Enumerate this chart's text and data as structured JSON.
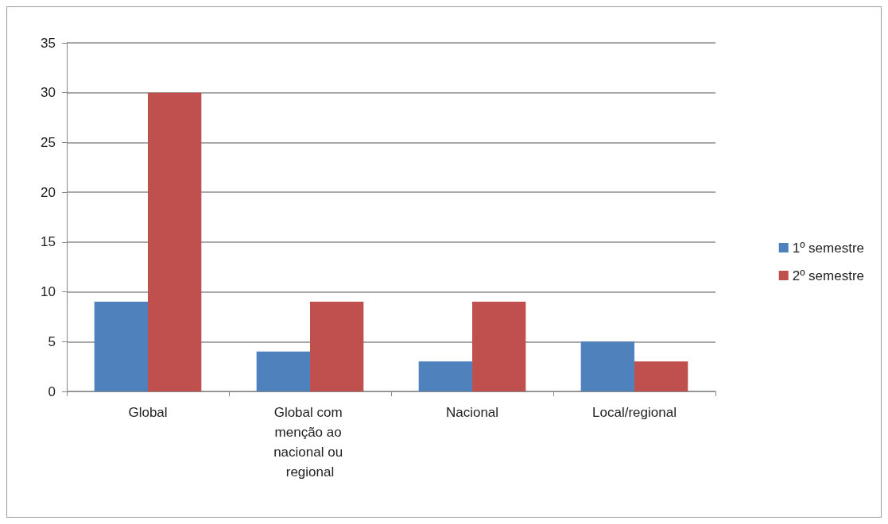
{
  "chart_data": {
    "type": "bar",
    "categories": [
      "Global",
      "Global com menção ao nacional ou regional",
      "Nacional",
      "Local/regional"
    ],
    "series": [
      {
        "name": "1º semestre",
        "color": "#4f81bd",
        "values": [
          9,
          4,
          3,
          5
        ]
      },
      {
        "name": "2º semestre",
        "color": "#c0504d",
        "values": [
          30,
          9,
          9,
          3
        ]
      }
    ],
    "ylim": [
      0,
      35
    ],
    "yticks": [
      0,
      5,
      10,
      15,
      20,
      25,
      30,
      35
    ],
    "grid": "y",
    "legend": "right"
  }
}
